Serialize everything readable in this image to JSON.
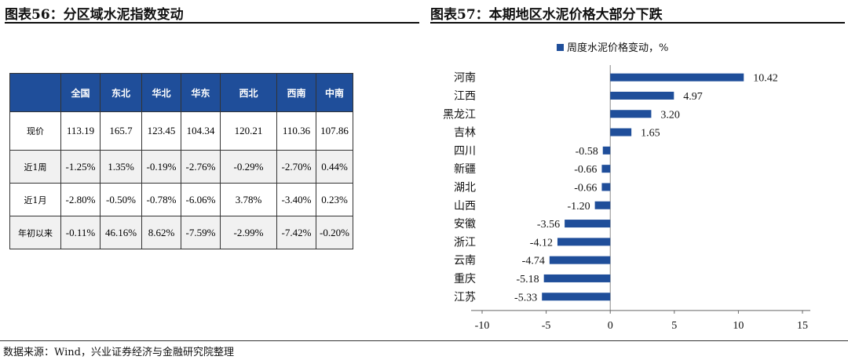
{
  "left_panel": {
    "title": "图表56：分区域水泥指数变动",
    "table": {
      "columns": [
        "",
        "全国",
        "东北",
        "华北",
        "华东",
        "西北",
        "西南",
        "中南"
      ],
      "rows": [
        [
          "现价",
          "113.19",
          "165.7",
          "123.45",
          "104.34",
          "120.21",
          "110.36",
          "107.86"
        ],
        [
          "近1周",
          "-1.25%",
          "1.35%",
          "-0.19%",
          "-2.76%",
          "-0.29%",
          "-2.70%",
          "0.44%"
        ],
        [
          "近1月",
          "-2.80%",
          "-0.50%",
          "-0.78%",
          "-6.06%",
          "3.78%",
          "-3.40%",
          "0.23%"
        ],
        [
          "年初以来",
          "-0.11%",
          "46.16%",
          "8.62%",
          "-7.59%",
          "-2.99%",
          "-7.42%",
          "-0.20%"
        ]
      ]
    }
  },
  "right_panel": {
    "title": "图表57：本期地区水泥价格大部分下跌"
  },
  "chart_data": {
    "type": "bar",
    "orientation": "horizontal",
    "categories": [
      "河南",
      "江西",
      "黑龙江",
      "吉林",
      "四川",
      "新疆",
      "湖北",
      "山西",
      "安徽",
      "浙江",
      "云南",
      "重庆",
      "江苏"
    ],
    "series": [
      {
        "name": "周度水泥价格变动，%",
        "values": [
          10.42,
          4.97,
          3.2,
          1.65,
          -0.58,
          -0.66,
          -0.66,
          -1.2,
          -3.56,
          -4.12,
          -4.74,
          -5.18,
          -5.33
        ],
        "labels": [
          "10.42",
          "4.97",
          "3.20",
          "1.65",
          "-0.58",
          "-0.66",
          "-0.66",
          "-1.20",
          "-3.56",
          "-4.12",
          "-4.74",
          "-5.18",
          "-5.33"
        ]
      }
    ],
    "xlim": [
      -10,
      15
    ],
    "xticks": [
      "-10",
      "-5",
      "0",
      "5",
      "10",
      "15"
    ],
    "legend_position": "top",
    "bar_color": "#1f4e9a"
  },
  "footer": {
    "source": "数据来源：Wind，兴业证券经济与金融研究院整理"
  }
}
